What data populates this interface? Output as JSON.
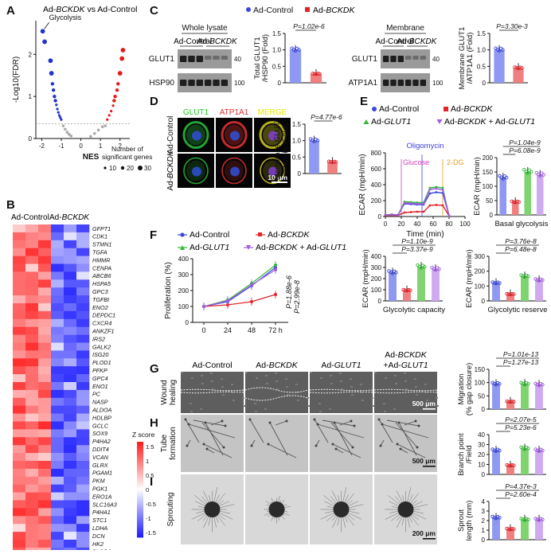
{
  "panel_labels": [
    "A",
    "B",
    "C",
    "D",
    "E",
    "F",
    "G",
    "H",
    "I"
  ],
  "panel_a": {
    "title": "Ad-BCKDK vs Ad-Control",
    "annotation": "Glycolysis",
    "xlabel": "NES",
    "ylabel": "-Log10(FDR)",
    "xticks": [
      "-2",
      "-1",
      "0",
      "1",
      "2"
    ],
    "yticks": [
      "0",
      "1",
      "2"
    ],
    "size_legend_title_1": "Number of",
    "size_legend_title_2": "significant genes",
    "size_legend_items": [
      "10",
      "20",
      "30"
    ],
    "colors": {
      "down": "#2233cc",
      "up": "#e31a1c",
      "ns": "#aaaaaa"
    }
  },
  "panel_b": {
    "col_labels": [
      "Ad-Control",
      "Ad-BCKDK"
    ],
    "genes": [
      "GFPT1",
      "CDK1",
      "STMN1",
      "TGFA",
      "HMMR",
      "CENPA",
      "ABCB6",
      "HSPA5",
      "GPC3",
      "TGFBI",
      "ENO2",
      "DEPDC1",
      "CXCR4",
      "ANKZF1",
      "IRS2",
      "GALK2",
      "ISG20",
      "PLOD1",
      "PFKP",
      "GPC4",
      "ENO1",
      "PC",
      "NASP",
      "ALDOA",
      "HDLBP",
      "GCLC",
      "SOX9",
      "P4HA2",
      "DDIT4",
      "VCAN",
      "GLRX",
      "PGAM1",
      "PKM",
      "PGK1",
      "ERO1A",
      "SLC16A3",
      "P4HA1",
      "STC1",
      "LDHA",
      "DCN",
      "HK2",
      "PLOD2",
      "VEGFA"
    ],
    "legend_title": "Z score",
    "legend_ticks": [
      "1.5",
      "1",
      "0.5",
      "0",
      "-0.5",
      "-1",
      "-1.5"
    ]
  },
  "panel_c": {
    "legend": [
      "Ad-Control",
      "Ad-BCKDK"
    ],
    "blot1": {
      "title": "Whole lysate",
      "lanes": [
        "Ad-Control",
        "Ad-BCKDK"
      ],
      "rows": [
        "GLUT1",
        "HSP90"
      ],
      "mw": [
        "40",
        "100"
      ]
    },
    "bar1": {
      "pval": "P=1.02e-6",
      "ylabel_1": "Total GLUT1",
      "ylabel_2": "/HSP90 (Fold)",
      "yticks": [
        "0",
        "0.5",
        "1.0",
        "1.5"
      ],
      "values": [
        1.0,
        0.27
      ]
    },
    "blot2": {
      "title": "Membrane",
      "lanes": [
        "Ad-Control",
        "Ad-BCKDK"
      ],
      "rows": [
        "GLUT1",
        "ATP1A1"
      ],
      "mw": [
        "40",
        "100"
      ]
    },
    "bar2": {
      "pval": "P=3.30e-3",
      "ylabel_1": "Membrane GLUT1",
      "ylabel_2": "/ATP1A1 (Fold)",
      "yticks": [
        "0",
        "0.5",
        "1.0",
        "1.5"
      ],
      "values": [
        1.0,
        0.45
      ]
    }
  },
  "panel_d": {
    "channels": [
      "GLUT1",
      "ATP1A1",
      "MERGE"
    ],
    "channel_colors": [
      "#22cc22",
      "#e03030",
      "#e6e600"
    ],
    "rows": [
      "Ad-Control",
      "Ad-BCKDK"
    ],
    "scale_bar": "10 μm",
    "bar": {
      "pval": "P=4.77e-6",
      "ylabel_1": "Membrane GLUT1",
      "ylabel_2": "intensity (Fold)",
      "yticks": [
        "0",
        "0.5",
        "1.0",
        "1.5"
      ],
      "values": [
        1.0,
        0.35
      ]
    }
  },
  "panel_e": {
    "legend": [
      "Ad-Control",
      "Ad-BCKDK",
      "Ad-GLUT1",
      "Ad-BCKDK + Ad-GLUT1"
    ],
    "line": {
      "ylabel": "ECAR (mpH/min)",
      "xlabel": "Time (min)",
      "xticks": [
        "0",
        "20",
        "40",
        "60",
        "80",
        "100"
      ],
      "yticks": [
        "0",
        "200",
        "400",
        "600",
        "800"
      ],
      "annotations": [
        "Glucose",
        "Oligomycin",
        "2-DG"
      ]
    },
    "bar_basal": {
      "title": "Basal glycolysis",
      "ylabel": "ECAR (mpH/min)",
      "yticks": [
        "0",
        "50",
        "100",
        "150",
        "200"
      ],
      "pvals": [
        "P=1.04e-9",
        "P=6.08e-9"
      ],
      "values": [
        130,
        45,
        150,
        140
      ]
    },
    "bar_capacity": {
      "title": "Glycolytic capacity",
      "ylabel": "ECAR (mpH/min)",
      "yticks": [
        "0",
        "100",
        "200",
        "300",
        "400"
      ],
      "pvals": [
        "P=1.10e-9",
        "P=3.37e-9"
      ],
      "values": [
        255,
        95,
        305,
        285
      ]
    },
    "bar_reserve": {
      "title": "Glycolytic reserve",
      "ylabel": "ECAR (mpH/min)",
      "yticks": [
        "0",
        "100",
        "200",
        "300"
      ],
      "pvals": [
        "P=3.76e-8",
        "P=6.48e-8"
      ],
      "values": [
        120,
        45,
        165,
        140
      ]
    }
  },
  "panel_f": {
    "legend": [
      "Ad-Control",
      "Ad-BCKDK",
      "Ad-GLUT1",
      "Ad-BCKDK + Ad-GLUT1"
    ],
    "ylabel": "Proliferation (%)",
    "xticks": [
      "0",
      "24",
      "48",
      "72 h"
    ],
    "yticks": [
      "0",
      "100",
      "200",
      "300",
      "400"
    ],
    "pvals": [
      "P=1.88e-6",
      "P=2.99e-8"
    ]
  },
  "panel_g": {
    "col_headers": [
      "Ad-Control",
      "Ad-BCKDK",
      "Ad-GLUT1",
      "Ad-BCKDK",
      "+Ad-GLUT1"
    ],
    "row_label_1": "Wound",
    "row_label_2": "healing",
    "scale_bar": "500 μm",
    "bar": {
      "pvals": [
        "P=1.01e-13",
        "P=1.27e-13"
      ],
      "ylabel_1": "Migration",
      "ylabel_2": "(% gap closure)",
      "yticks": [
        "0",
        "50",
        "100",
        "150"
      ],
      "values": [
        95,
        28,
        95,
        92
      ]
    }
  },
  "panel_h": {
    "row_label_1": "Tube",
    "row_label_2": "formation",
    "scale_bar": "500 μm",
    "bar": {
      "pvals": [
        "P=2.07e-5",
        "P=5.23e-6"
      ],
      "ylabel_1": "Branch point",
      "ylabel_2": "/Field",
      "yticks": [
        "0",
        "10",
        "20",
        "30",
        "40"
      ],
      "values": [
        24,
        9,
        26,
        24
      ]
    }
  },
  "panel_i": {
    "row_label": "Sprouting",
    "scale_bar": "200 μm",
    "bar": {
      "pvals": [
        "P=4.37e-3",
        "P=2.60e-4"
      ],
      "ylabel_1": "Sprout",
      "ylabel_2": "length (mm)",
      "yticks": [
        "0",
        "1",
        "2",
        "3",
        "4"
      ],
      "values": [
        2.3,
        1.1,
        2.1,
        2.1
      ]
    }
  },
  "chart_data": [
    {
      "type": "scatter",
      "title": "Ad-BCKDK vs Ad-Control",
      "xlabel": "NES",
      "ylabel": "-Log10(FDR)",
      "xlim": [
        -2.3,
        2.5
      ],
      "ylim": [
        0,
        2.8
      ],
      "series": [
        {
          "name": "down",
          "points": [
            [
              -1.95,
              2.55
            ],
            [
              -1.85,
              2.3
            ],
            [
              -1.55,
              1.85
            ],
            [
              -1.5,
              1.55
            ],
            [
              -1.45,
              1.3
            ],
            [
              -1.4,
              1.15
            ],
            [
              -1.35,
              1.0
            ],
            [
              -1.3,
              0.9
            ],
            [
              -1.25,
              0.8
            ],
            [
              -1.2,
              0.7
            ],
            [
              -1.15,
              0.62
            ],
            [
              -1.1,
              0.55
            ],
            [
              -1.05,
              0.5
            ],
            [
              -1.0,
              0.45
            ]
          ]
        },
        {
          "name": "ns",
          "points": [
            [
              -0.9,
              0.3
            ],
            [
              -0.8,
              0.22
            ],
            [
              -0.7,
              0.15
            ],
            [
              -0.6,
              0.1
            ],
            [
              -0.5,
              0.06
            ],
            [
              0.5,
              0.05
            ],
            [
              0.7,
              0.12
            ],
            [
              0.9,
              0.2
            ],
            [
              1.1,
              0.28
            ],
            [
              1.25,
              0.3
            ]
          ]
        },
        {
          "name": "up",
          "points": [
            [
              1.35,
              0.45
            ],
            [
              1.45,
              0.55
            ],
            [
              1.55,
              0.65
            ],
            [
              1.65,
              0.78
            ],
            [
              1.7,
              0.9
            ],
            [
              1.75,
              1.0
            ],
            [
              1.85,
              1.15
            ],
            [
              1.9,
              1.3
            ],
            [
              2.0,
              1.55
            ],
            [
              2.1,
              1.9
            ],
            [
              2.15,
              2.1
            ]
          ]
        }
      ]
    },
    {
      "type": "line",
      "xlabel": "Time (min)",
      "ylabel": "ECAR (mpH/min)",
      "xlim": [
        0,
        100
      ],
      "ylim": [
        0,
        800
      ],
      "x": [
        0,
        8,
        16,
        24,
        32,
        40,
        48,
        56,
        64,
        72,
        80
      ],
      "series": [
        {
          "name": "Ad-Control",
          "values": [
            20,
            25,
            22,
            160,
            155,
            150,
            150,
            290,
            305,
            295,
            10
          ]
        },
        {
          "name": "Ad-BCKDK",
          "values": [
            15,
            15,
            15,
            50,
            55,
            60,
            60,
            140,
            145,
            140,
            8
          ]
        },
        {
          "name": "Ad-GLUT1",
          "values": [
            20,
            25,
            22,
            185,
            180,
            175,
            175,
            360,
            370,
            360,
            10
          ]
        },
        {
          "name": "Ad-BCKDK + Ad-GLUT1",
          "values": [
            20,
            22,
            20,
            170,
            165,
            160,
            160,
            340,
            350,
            335,
            10
          ]
        }
      ]
    },
    {
      "type": "line",
      "ylabel": "Proliferation (%)",
      "x": [
        0,
        24,
        48,
        72
      ],
      "ylim": [
        0,
        400
      ],
      "series": [
        {
          "name": "Ad-Control",
          "values": [
            100,
            130,
            230,
            345
          ]
        },
        {
          "name": "Ad-BCKDK",
          "values": [
            100,
            110,
            130,
            175
          ]
        },
        {
          "name": "Ad-GLUT1",
          "values": [
            100,
            140,
            245,
            360
          ]
        },
        {
          "name": "Ad-BCKDK + Ad-GLUT1",
          "values": [
            100,
            135,
            235,
            330
          ]
        }
      ]
    }
  ]
}
